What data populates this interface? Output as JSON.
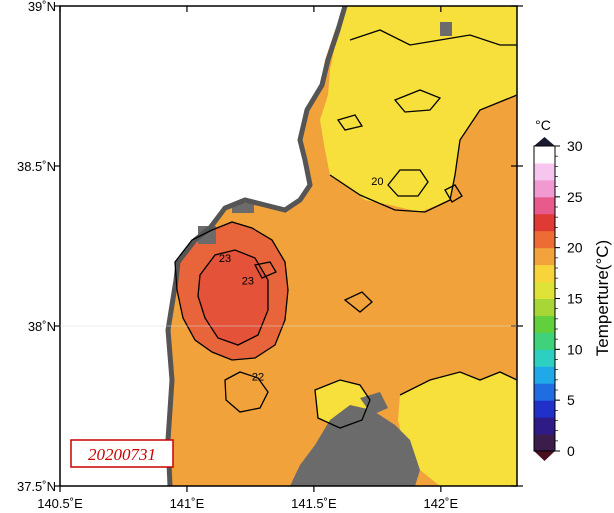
{
  "map": {
    "date_stamp": "20200731",
    "lon_ticks": [
      {
        "value": 140.5,
        "label": "140.5˚E"
      },
      {
        "value": 141.0,
        "label": "141˚E"
      },
      {
        "value": 141.5,
        "label": "141.5˚E"
      },
      {
        "value": 142.0,
        "label": "142˚E"
      }
    ],
    "lat_ticks": [
      {
        "value": 39.0,
        "label": "39˚N"
      },
      {
        "value": 38.5,
        "label": "38.5˚N"
      },
      {
        "value": 38.0,
        "label": "38˚N"
      },
      {
        "value": 37.5,
        "label": "37.5˚N"
      }
    ],
    "extent": {
      "lon_min": 140.5,
      "lon_max": 142.3,
      "lat_min": 37.5,
      "lat_max": 39.0
    },
    "contour_labels": [
      {
        "text": "20",
        "lon": 141.75,
        "lat": 38.44
      },
      {
        "text": "23",
        "lon": 141.24,
        "lat": 38.13
      },
      {
        "text": "22",
        "lon": 141.28,
        "lat": 37.83
      },
      {
        "text": "23",
        "lon": 141.15,
        "lat": 38.2
      }
    ],
    "colors": {
      "land": "#ffffff",
      "missing": "#696969"
    }
  },
  "colorbar": {
    "unit_top": "°C",
    "title": "Temperture(°C)",
    "min": 0,
    "max": 30,
    "tick_labels": [
      "0",
      "5",
      "10",
      "15",
      "20",
      "25",
      "30"
    ],
    "colors": [
      "#3a1d4a",
      "#2f1b86",
      "#2030c8",
      "#1f6de0",
      "#20a9e8",
      "#2ccfc0",
      "#3fd27a",
      "#62cf3d",
      "#a7d636",
      "#dfe337",
      "#f6d43a",
      "#f2a33c",
      "#ec6c33",
      "#e03a35",
      "#e85a8c",
      "#f19ad2",
      "#f7c6ee",
      "#ffffff"
    ]
  }
}
